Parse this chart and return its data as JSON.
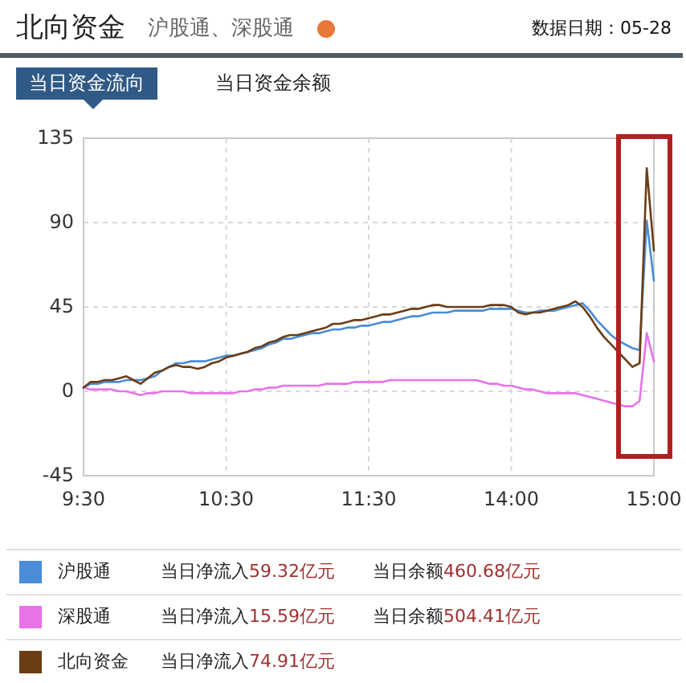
{
  "chart_data": {
    "type": "line",
    "title": "北向资金",
    "subtitle": "沪股通、深股通",
    "categories": [
      "9:30",
      null,
      null,
      null,
      null,
      null,
      null,
      null,
      null,
      null,
      null,
      null,
      null,
      null,
      null,
      null,
      null,
      null,
      null,
      null,
      "10:30",
      null,
      null,
      null,
      null,
      null,
      null,
      null,
      null,
      null,
      null,
      null,
      null,
      null,
      null,
      null,
      null,
      null,
      null,
      null,
      "11:30",
      null,
      null,
      null,
      null,
      null,
      null,
      null,
      null,
      null,
      null,
      null,
      null,
      null,
      null,
      null,
      null,
      null,
      null,
      null,
      "14:00",
      null,
      null,
      null,
      null,
      null,
      null,
      null,
      null,
      null,
      null,
      null,
      null,
      null,
      null,
      null,
      null,
      null,
      null,
      null,
      "15:00"
    ],
    "ylim": [
      -45,
      135
    ],
    "yticks": [
      -45,
      0,
      45,
      90,
      135
    ],
    "grid": true,
    "legend": "bottom",
    "marker": "none",
    "line_style": "solid",
    "series": [
      {
        "name": "沪股通",
        "color": "#4a8cd8",
        "values": [
          2,
          4,
          4,
          5,
          5,
          5,
          6,
          6,
          6,
          7,
          8,
          11,
          13,
          15,
          15,
          16,
          16,
          16,
          17,
          18,
          19,
          19,
          20,
          21,
          22,
          23,
          25,
          26,
          28,
          28,
          29,
          30,
          31,
          31,
          32,
          33,
          33,
          34,
          34,
          35,
          35,
          36,
          37,
          37,
          38,
          39,
          40,
          40,
          41,
          42,
          42,
          42,
          43,
          43,
          43,
          43,
          43,
          44,
          44,
          44,
          44,
          43,
          42,
          42,
          43,
          43,
          43,
          44,
          45,
          46,
          47,
          43,
          38,
          34,
          30,
          27,
          25,
          23,
          22,
          91,
          59
        ]
      },
      {
        "name": "深股通",
        "color": "#e872e8",
        "values": [
          2,
          1,
          1,
          1,
          1,
          0,
          0,
          -1,
          -2,
          -1,
          -1,
          0,
          0,
          0,
          0,
          -1,
          -1,
          -1,
          -1,
          -1,
          -1,
          -1,
          0,
          0,
          1,
          1,
          2,
          2,
          3,
          3,
          3,
          3,
          3,
          3,
          4,
          4,
          4,
          4,
          5,
          5,
          5,
          5,
          5,
          6,
          6,
          6,
          6,
          6,
          6,
          6,
          6,
          6,
          6,
          6,
          6,
          6,
          5,
          4,
          4,
          3,
          3,
          2,
          1,
          1,
          0,
          -1,
          -1,
          -1,
          -1,
          -1,
          -2,
          -3,
          -4,
          -5,
          -6,
          -7,
          -8,
          -8,
          -5,
          31,
          16
        ]
      },
      {
        "name": "北向资金",
        "color": "#6b3d16",
        "values": [
          2,
          5,
          5,
          6,
          6,
          7,
          8,
          6,
          4,
          7,
          10,
          11,
          13,
          14,
          13,
          13,
          12,
          13,
          15,
          16,
          18,
          19,
          20,
          21,
          23,
          24,
          26,
          27,
          29,
          30,
          30,
          31,
          32,
          33,
          34,
          36,
          36,
          37,
          38,
          38,
          39,
          40,
          41,
          41,
          42,
          43,
          44,
          44,
          45,
          46,
          46,
          45,
          45,
          45,
          45,
          45,
          45,
          46,
          46,
          46,
          45,
          42,
          41,
          42,
          42,
          43,
          44,
          45,
          46,
          48,
          45,
          40,
          34,
          29,
          25,
          21,
          17,
          13,
          15,
          119,
          75
        ]
      }
    ],
    "annotations": [
      "数据日期：05-28",
      "当日资金流向",
      "当日资金余额",
      "当日净流入59.32亿元",
      "当日余额460.68亿元",
      "当日净流入15.59亿元",
      "当日余额504.41亿元",
      "当日净流入74.91亿元"
    ]
  }
}
